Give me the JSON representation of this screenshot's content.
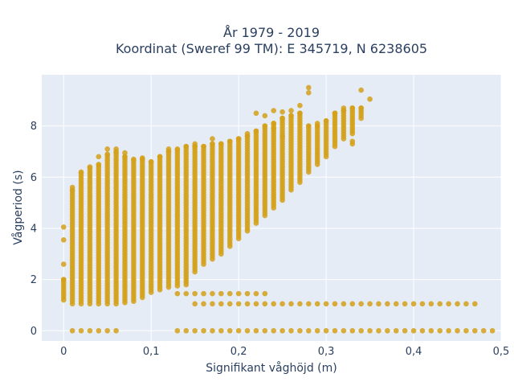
{
  "chart_data": {
    "type": "scatter",
    "title_line1": "År 1979 - 2019",
    "title_line2": "Koordinat (Sweref 99 TM): E 345719, N 6238605",
    "xlabel": "Signifikant våghöjd (m)",
    "ylabel": "Vågperiod (s)",
    "xlim": [
      -0.025,
      0.5
    ],
    "ylim": [
      -0.4,
      10.0
    ],
    "x_ticks": [
      {
        "value": 0,
        "label": "0"
      },
      {
        "value": 0.1,
        "label": "0,1"
      },
      {
        "value": 0.2,
        "label": "0,2"
      },
      {
        "value": 0.3,
        "label": "0,3"
      },
      {
        "value": 0.4,
        "label": "0,4"
      },
      {
        "value": 0.5,
        "label": "0,5"
      }
    ],
    "y_ticks": [
      {
        "value": 0,
        "label": "0"
      },
      {
        "value": 2,
        "label": "2"
      },
      {
        "value": 4,
        "label": "4"
      },
      {
        "value": 6,
        "label": "6"
      },
      {
        "value": 8,
        "label": "8"
      }
    ],
    "grid": true,
    "marker_color": "#D4A017",
    "plot_bg": "#E5ECF6",
    "columns": [
      {
        "x": 0.0,
        "ymin": 1.2,
        "ymax": 2.0
      },
      {
        "x": 0.01,
        "ymin": 1.05,
        "ymax": 5.5
      },
      {
        "x": 0.02,
        "ymin": 1.05,
        "ymax": 6.2
      },
      {
        "x": 0.03,
        "ymin": 1.05,
        "ymax": 6.4
      },
      {
        "x": 0.04,
        "ymin": 1.05,
        "ymax": 6.5
      },
      {
        "x": 0.05,
        "ymin": 1.05,
        "ymax": 6.9
      },
      {
        "x": 0.06,
        "ymin": 1.05,
        "ymax": 7.0
      },
      {
        "x": 0.07,
        "ymin": 1.1,
        "ymax": 6.8
      },
      {
        "x": 0.08,
        "ymin": 1.15,
        "ymax": 6.7
      },
      {
        "x": 0.09,
        "ymin": 1.3,
        "ymax": 6.7
      },
      {
        "x": 0.1,
        "ymin": 1.5,
        "ymax": 6.6
      },
      {
        "x": 0.11,
        "ymin": 1.6,
        "ymax": 6.8
      },
      {
        "x": 0.12,
        "ymin": 1.7,
        "ymax": 7.0
      },
      {
        "x": 0.13,
        "ymin": 1.75,
        "ymax": 7.1
      },
      {
        "x": 0.14,
        "ymin": 1.8,
        "ymax": 7.2
      },
      {
        "x": 0.15,
        "ymin": 2.3,
        "ymax": 7.2
      },
      {
        "x": 0.16,
        "ymin": 2.6,
        "ymax": 7.2
      },
      {
        "x": 0.17,
        "ymin": 2.8,
        "ymax": 7.3
      },
      {
        "x": 0.18,
        "ymin": 3.0,
        "ymax": 7.3
      },
      {
        "x": 0.19,
        "ymin": 3.3,
        "ymax": 7.4
      },
      {
        "x": 0.2,
        "ymin": 3.6,
        "ymax": 7.5
      },
      {
        "x": 0.21,
        "ymin": 3.9,
        "ymax": 7.6
      },
      {
        "x": 0.22,
        "ymin": 4.2,
        "ymax": 7.8
      },
      {
        "x": 0.23,
        "ymin": 4.5,
        "ymax": 8.0
      },
      {
        "x": 0.24,
        "ymin": 4.8,
        "ymax": 8.1
      },
      {
        "x": 0.25,
        "ymin": 5.1,
        "ymax": 8.3
      },
      {
        "x": 0.26,
        "ymin": 5.5,
        "ymax": 8.4
      },
      {
        "x": 0.27,
        "ymin": 5.8,
        "ymax": 8.5
      },
      {
        "x": 0.28,
        "ymin": 6.2,
        "ymax": 8.0
      },
      {
        "x": 0.29,
        "ymin": 6.5,
        "ymax": 8.0
      },
      {
        "x": 0.3,
        "ymin": 6.8,
        "ymax": 8.2
      },
      {
        "x": 0.31,
        "ymin": 7.2,
        "ymax": 8.5
      },
      {
        "x": 0.32,
        "ymin": 7.5,
        "ymax": 8.6
      },
      {
        "x": 0.33,
        "ymin": 7.7,
        "ymax": 8.7
      },
      {
        "x": 0.34,
        "ymin": 8.3,
        "ymax": 8.7
      }
    ],
    "extra_points": [
      [
        0.0,
        4.05
      ],
      [
        0.0,
        3.55
      ],
      [
        0.0,
        2.6
      ],
      [
        0.01,
        5.6
      ],
      [
        0.04,
        6.8
      ],
      [
        0.05,
        7.1
      ],
      [
        0.06,
        7.1
      ],
      [
        0.07,
        6.95
      ],
      [
        0.09,
        6.75
      ],
      [
        0.12,
        7.1
      ],
      [
        0.15,
        7.3
      ],
      [
        0.17,
        7.5
      ],
      [
        0.21,
        7.7
      ],
      [
        0.22,
        8.5
      ],
      [
        0.23,
        8.4
      ],
      [
        0.24,
        8.6
      ],
      [
        0.25,
        8.55
      ],
      [
        0.26,
        8.6
      ],
      [
        0.24,
        7.9
      ],
      [
        0.25,
        7.6
      ],
      [
        0.27,
        8.8
      ],
      [
        0.28,
        9.5
      ],
      [
        0.28,
        9.3
      ],
      [
        0.29,
        8.1
      ],
      [
        0.32,
        8.7
      ],
      [
        0.33,
        7.3
      ],
      [
        0.34,
        9.4
      ],
      [
        0.35,
        9.05
      ],
      [
        0.33,
        7.4
      ]
    ],
    "row_1_5": {
      "y": 1.45,
      "x_values": [
        0.13,
        0.14,
        0.15,
        0.16,
        0.17,
        0.18,
        0.19,
        0.2,
        0.21,
        0.22,
        0.23
      ]
    },
    "row_1_0": {
      "y": 1.05,
      "x_values": [
        0.15,
        0.16,
        0.17,
        0.18,
        0.19,
        0.2,
        0.21,
        0.22,
        0.23,
        0.24,
        0.25,
        0.26,
        0.27,
        0.28,
        0.29,
        0.3,
        0.31,
        0.32,
        0.33,
        0.34,
        0.35,
        0.36,
        0.37,
        0.38,
        0.39,
        0.4,
        0.41,
        0.42,
        0.43,
        0.44,
        0.45,
        0.46,
        0.47
      ]
    },
    "row_0": {
      "y": 0.0,
      "x_values": [
        0.01,
        0.02,
        0.03,
        0.04,
        0.05,
        0.06,
        0.13,
        0.14,
        0.15,
        0.16,
        0.17,
        0.18,
        0.19,
        0.2,
        0.21,
        0.22,
        0.23,
        0.24,
        0.25,
        0.26,
        0.27,
        0.28,
        0.29,
        0.3,
        0.31,
        0.32,
        0.33,
        0.34,
        0.35,
        0.36,
        0.37,
        0.38,
        0.39,
        0.4,
        0.41,
        0.42,
        0.43,
        0.44,
        0.45,
        0.46,
        0.47,
        0.48,
        0.49
      ]
    }
  }
}
